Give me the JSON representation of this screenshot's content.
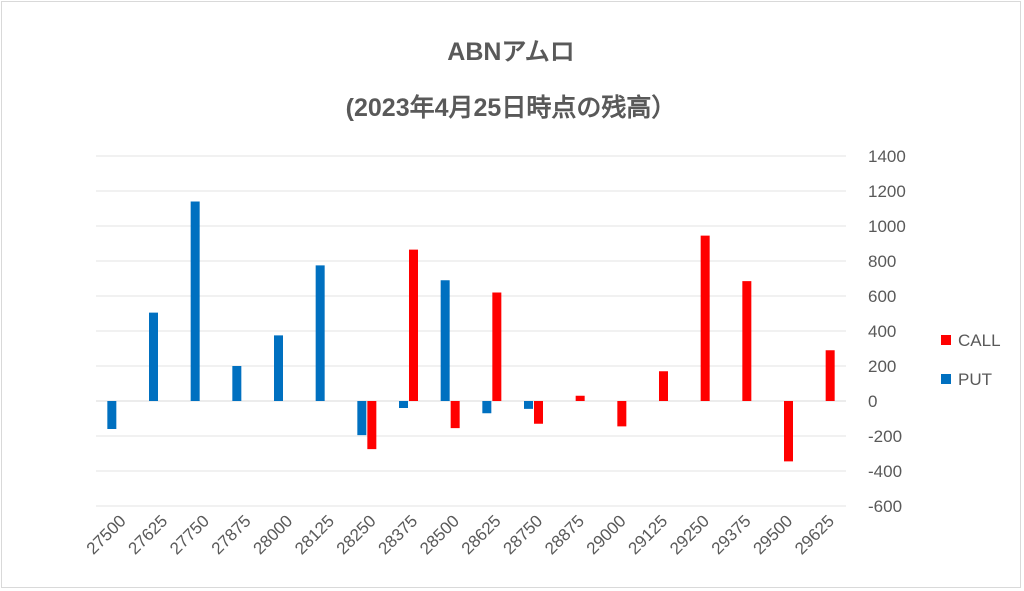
{
  "chart_data": {
    "type": "bar",
    "title": "ABNアムロ",
    "subtitle": "(2023年4月25日時点の残高）",
    "xlabel": "",
    "ylabel": "",
    "categories": [
      "27500",
      "27625",
      "27750",
      "27875",
      "28000",
      "28125",
      "28250",
      "28375",
      "28500",
      "28625",
      "28750",
      "28875",
      "29000",
      "29125",
      "29250",
      "29375",
      "29500",
      "29625"
    ],
    "series": [
      {
        "name": "PUT",
        "color": "#0070c0",
        "values": [
          -160,
          505,
          1140,
          200,
          375,
          775,
          -195,
          -40,
          690,
          -70,
          -45,
          null,
          null,
          null,
          null,
          null,
          null,
          null
        ]
      },
      {
        "name": "CALL",
        "color": "#ff0000",
        "values": [
          null,
          null,
          null,
          null,
          null,
          null,
          -275,
          865,
          -155,
          620,
          -130,
          30,
          -145,
          170,
          945,
          685,
          -345,
          290
        ]
      }
    ],
    "ylim": [
      -600,
      1400
    ],
    "yticks": [
      -600,
      -400,
      -200,
      0,
      200,
      400,
      600,
      800,
      1000,
      1200,
      1400
    ],
    "y_axis_side": "right",
    "grid": true,
    "legend": {
      "placement": "right",
      "entries": [
        "CALL",
        "PUT"
      ]
    }
  }
}
